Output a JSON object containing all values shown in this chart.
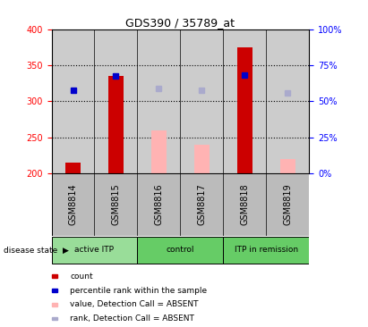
{
  "title": "GDS390 / 35789_at",
  "samples": [
    "GSM8814",
    "GSM8815",
    "GSM8816",
    "GSM8817",
    "GSM8818",
    "GSM8819"
  ],
  "count_bars": [
    215,
    335,
    null,
    null,
    375,
    null
  ],
  "absent_value_bars": [
    null,
    null,
    260,
    240,
    null,
    220
  ],
  "percentile_rank_squares": [
    316,
    335,
    null,
    null,
    336,
    null
  ],
  "absent_rank_squares": [
    null,
    null,
    318,
    315,
    null,
    312
  ],
  "ylim_left": [
    200,
    400
  ],
  "ylim_right": [
    0,
    100
  ],
  "yticks_left": [
    200,
    250,
    300,
    350,
    400
  ],
  "yticks_right": [
    0,
    25,
    50,
    75,
    100
  ],
  "bar_width": 0.35,
  "count_color": "#cc0000",
  "absent_value_color": "#ffb3b3",
  "percentile_color": "#0000cc",
  "absent_rank_color": "#aaaacc",
  "background_color": "#ffffff",
  "plot_bg_color": "#cccccc",
  "sample_bg_color": "#bbbbbb",
  "group_defs": [
    {
      "label": "active ITP",
      "start": 0,
      "end": 1,
      "color": "#99dd99"
    },
    {
      "label": "control",
      "start": 2,
      "end": 3,
      "color": "#66cc66"
    },
    {
      "label": "ITP in remission",
      "start": 4,
      "end": 5,
      "color": "#66cc66"
    }
  ],
  "legend_items": [
    {
      "label": "count",
      "color": "#cc0000"
    },
    {
      "label": "percentile rank within the sample",
      "color": "#0000cc"
    },
    {
      "label": "value, Detection Call = ABSENT",
      "color": "#ffb3b3"
    },
    {
      "label": "rank, Detection Call = ABSENT",
      "color": "#aaaacc"
    }
  ],
  "disease_state_label": "disease state  ▶"
}
